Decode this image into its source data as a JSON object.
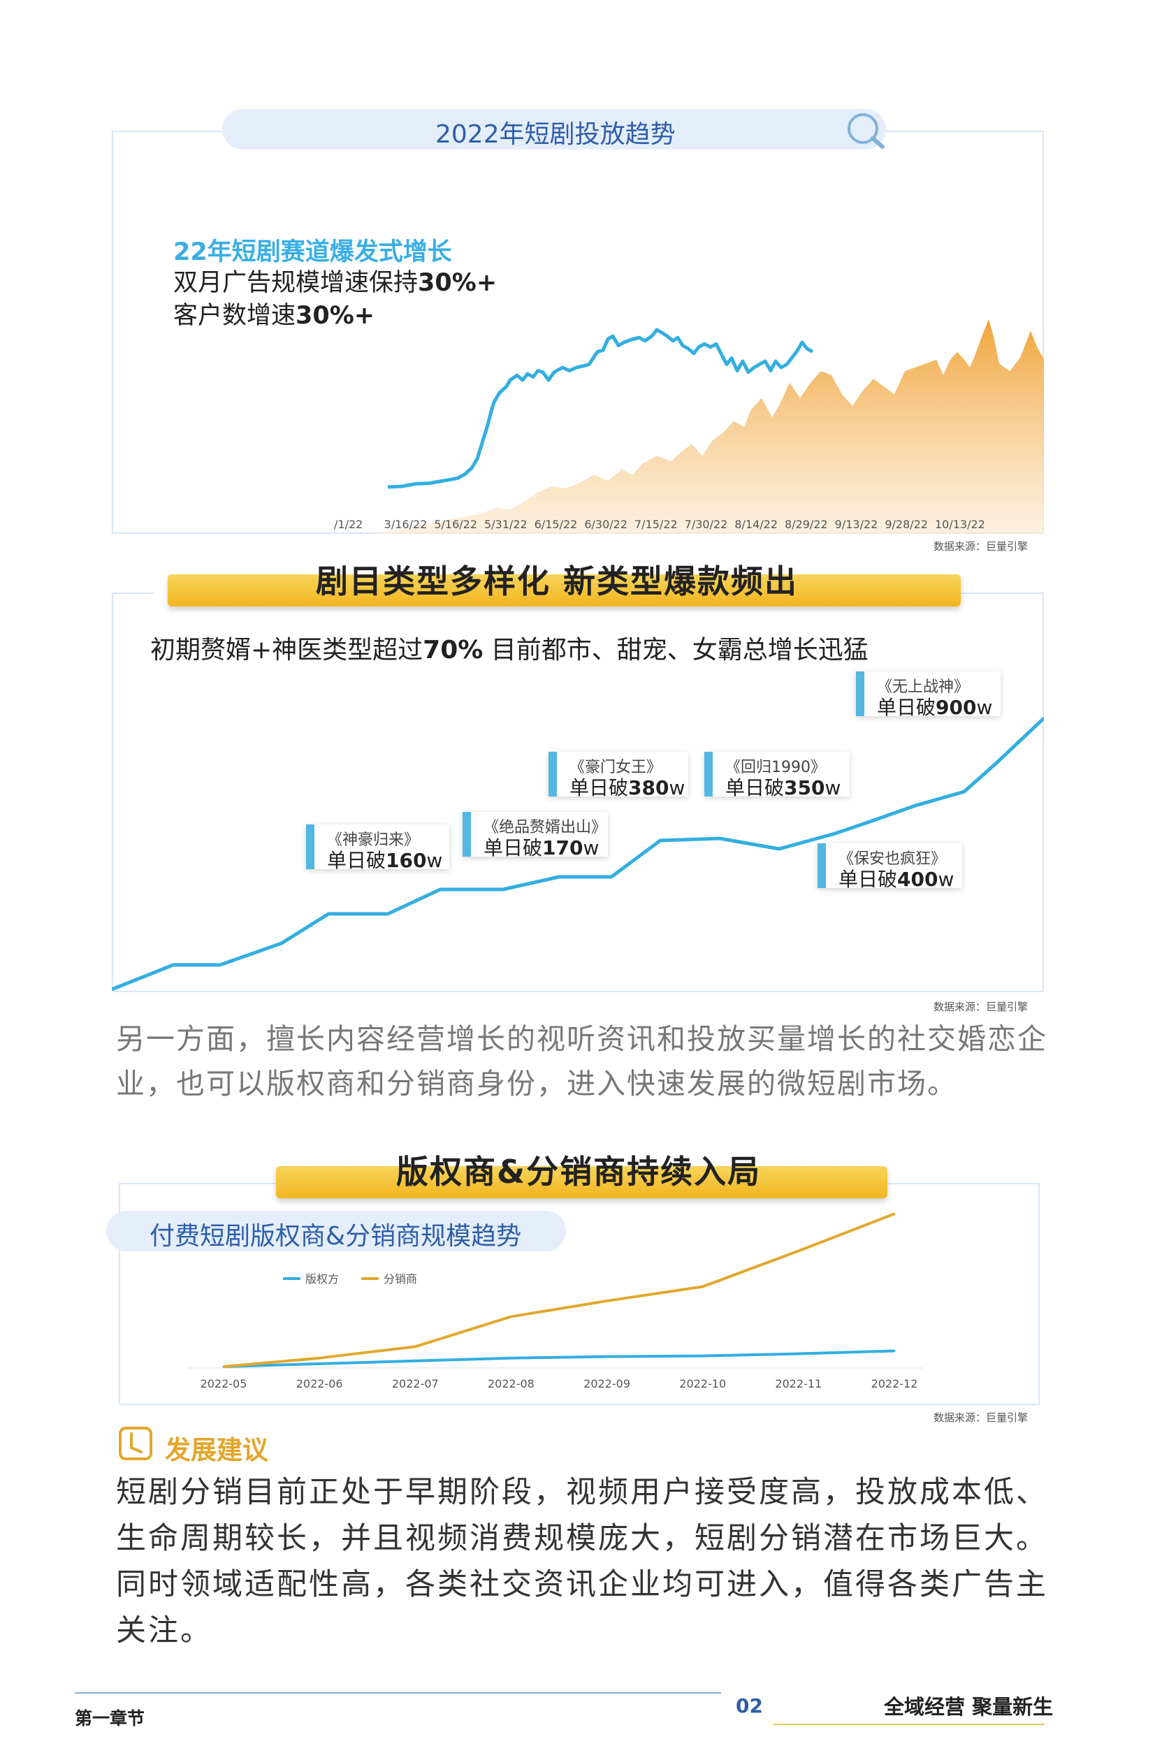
{
  "section1": {
    "title": "2022年短剧投放趋势",
    "highlight": "22年短剧赛道爆发式增长",
    "line2_prefix": "双月广告规模增速保持",
    "line2_value": "30%+",
    "line3_prefix": "客户数增速",
    "line3_value": "30%+",
    "x_ticks": [
      "/1/22",
      "3/16/22",
      "5/16/22",
      "5/31/22",
      "6/15/22",
      "6/30/22",
      "7/15/22",
      "7/30/22",
      "8/14/22",
      "8/29/22",
      "9/13/22",
      "9/28/22",
      "10/13/22"
    ],
    "source": "数据来源：巨量引擎",
    "colors": {
      "line": "#33aee0",
      "area_top": "#f0a43a",
      "area_bottom": "#fdf1e0"
    }
  },
  "section2": {
    "banner": "剧目类型多样化 新类型爆款频出",
    "subtitle_prefix": "初期赘婿+神医类型超过",
    "subtitle_value": "70%",
    "subtitle_suffix": " 目前都市、甜宠、女霸总增长迅猛",
    "callouts": [
      {
        "name": "《神豪归来》",
        "prefix": "单日破",
        "value": "160",
        "unit": "w"
      },
      {
        "name": "《绝品赘婿出山》",
        "prefix": "单日破",
        "value": "170",
        "unit": "w"
      },
      {
        "name": "《豪门女王》",
        "prefix": "单日破",
        "value": "380",
        "unit": "w"
      },
      {
        "name": "《回归1990》",
        "prefix": "单日破",
        "value": "350",
        "unit": "w"
      },
      {
        "name": "《保安也疯狂》",
        "prefix": "单日破",
        "value": "400",
        "unit": "w"
      },
      {
        "name": "《无上战神》",
        "prefix": "单日破",
        "value": "900",
        "unit": "w"
      }
    ],
    "source": "数据来源：巨量引擎"
  },
  "paragraph1": "另一方面，擅长内容经营增长的视听资讯和投放买量增长的社交婚恋企业，也可以版权商和分销商身份，进入快速发展的微短剧市场。",
  "section3": {
    "banner": "版权商&分销商持续入局",
    "pill_title": "付费短剧版权商&分销商规模趋势",
    "source": "数据来源：巨量引擎"
  },
  "chart_data": {
    "type": "line",
    "categories": [
      "2022-05",
      "2022-06",
      "2022-07",
      "2022-08",
      "2022-09",
      "2022-10",
      "2022-11",
      "2022-12"
    ],
    "series": [
      {
        "name": "版权方",
        "color": "#33aee0",
        "values": [
          1,
          3,
          5,
          7,
          8,
          8.5,
          10,
          12
        ]
      },
      {
        "name": "分销商",
        "color": "#e1a82f",
        "values": [
          1,
          7,
          15,
          36,
          47,
          57,
          82,
          108
        ]
      }
    ],
    "ylim": [
      0,
      115
    ]
  },
  "advice": {
    "title": "发展建议",
    "body": "短剧分销目前正处于早期阶段，视频用户接受度高，投放成本低、生命周期较长，并且视频消费规模庞大，短剧分销潜在市场巨大。同时领域适配性高，各类社交资讯企业均可进入，值得各类广告主关注。"
  },
  "footer": {
    "chapter": "第一章节",
    "page": "02",
    "slogan": "全域经营 聚量新生"
  }
}
